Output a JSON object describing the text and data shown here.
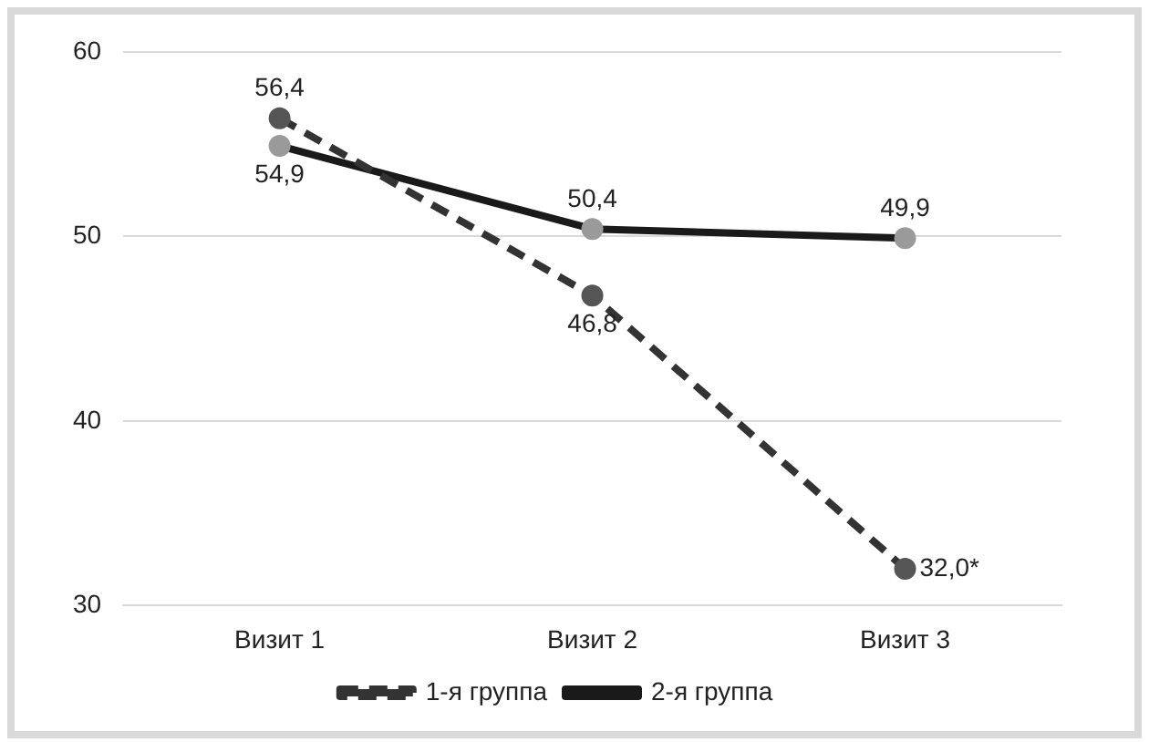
{
  "chart_data": {
    "type": "line",
    "categories": [
      "Визит 1",
      "Визит 2",
      "Визит 3"
    ],
    "series": [
      {
        "name": "1-я группа",
        "color": "#333333",
        "line_style": "dashed",
        "values": [
          56.4,
          46.8,
          32.0
        ],
        "value_labels": [
          "56,4",
          "46,8",
          "32,0*"
        ]
      },
      {
        "name": "2-я группа",
        "color": "#1a1a1a",
        "line_style": "solid",
        "values": [
          54.9,
          50.4,
          49.9
        ],
        "value_labels": [
          "54,9",
          "50,4",
          "49,9"
        ]
      }
    ],
    "ylim": [
      30,
      60
    ],
    "yticks": [
      30,
      40,
      50,
      60
    ],
    "grid": "y",
    "legend": "bottom",
    "marker": "circle"
  }
}
